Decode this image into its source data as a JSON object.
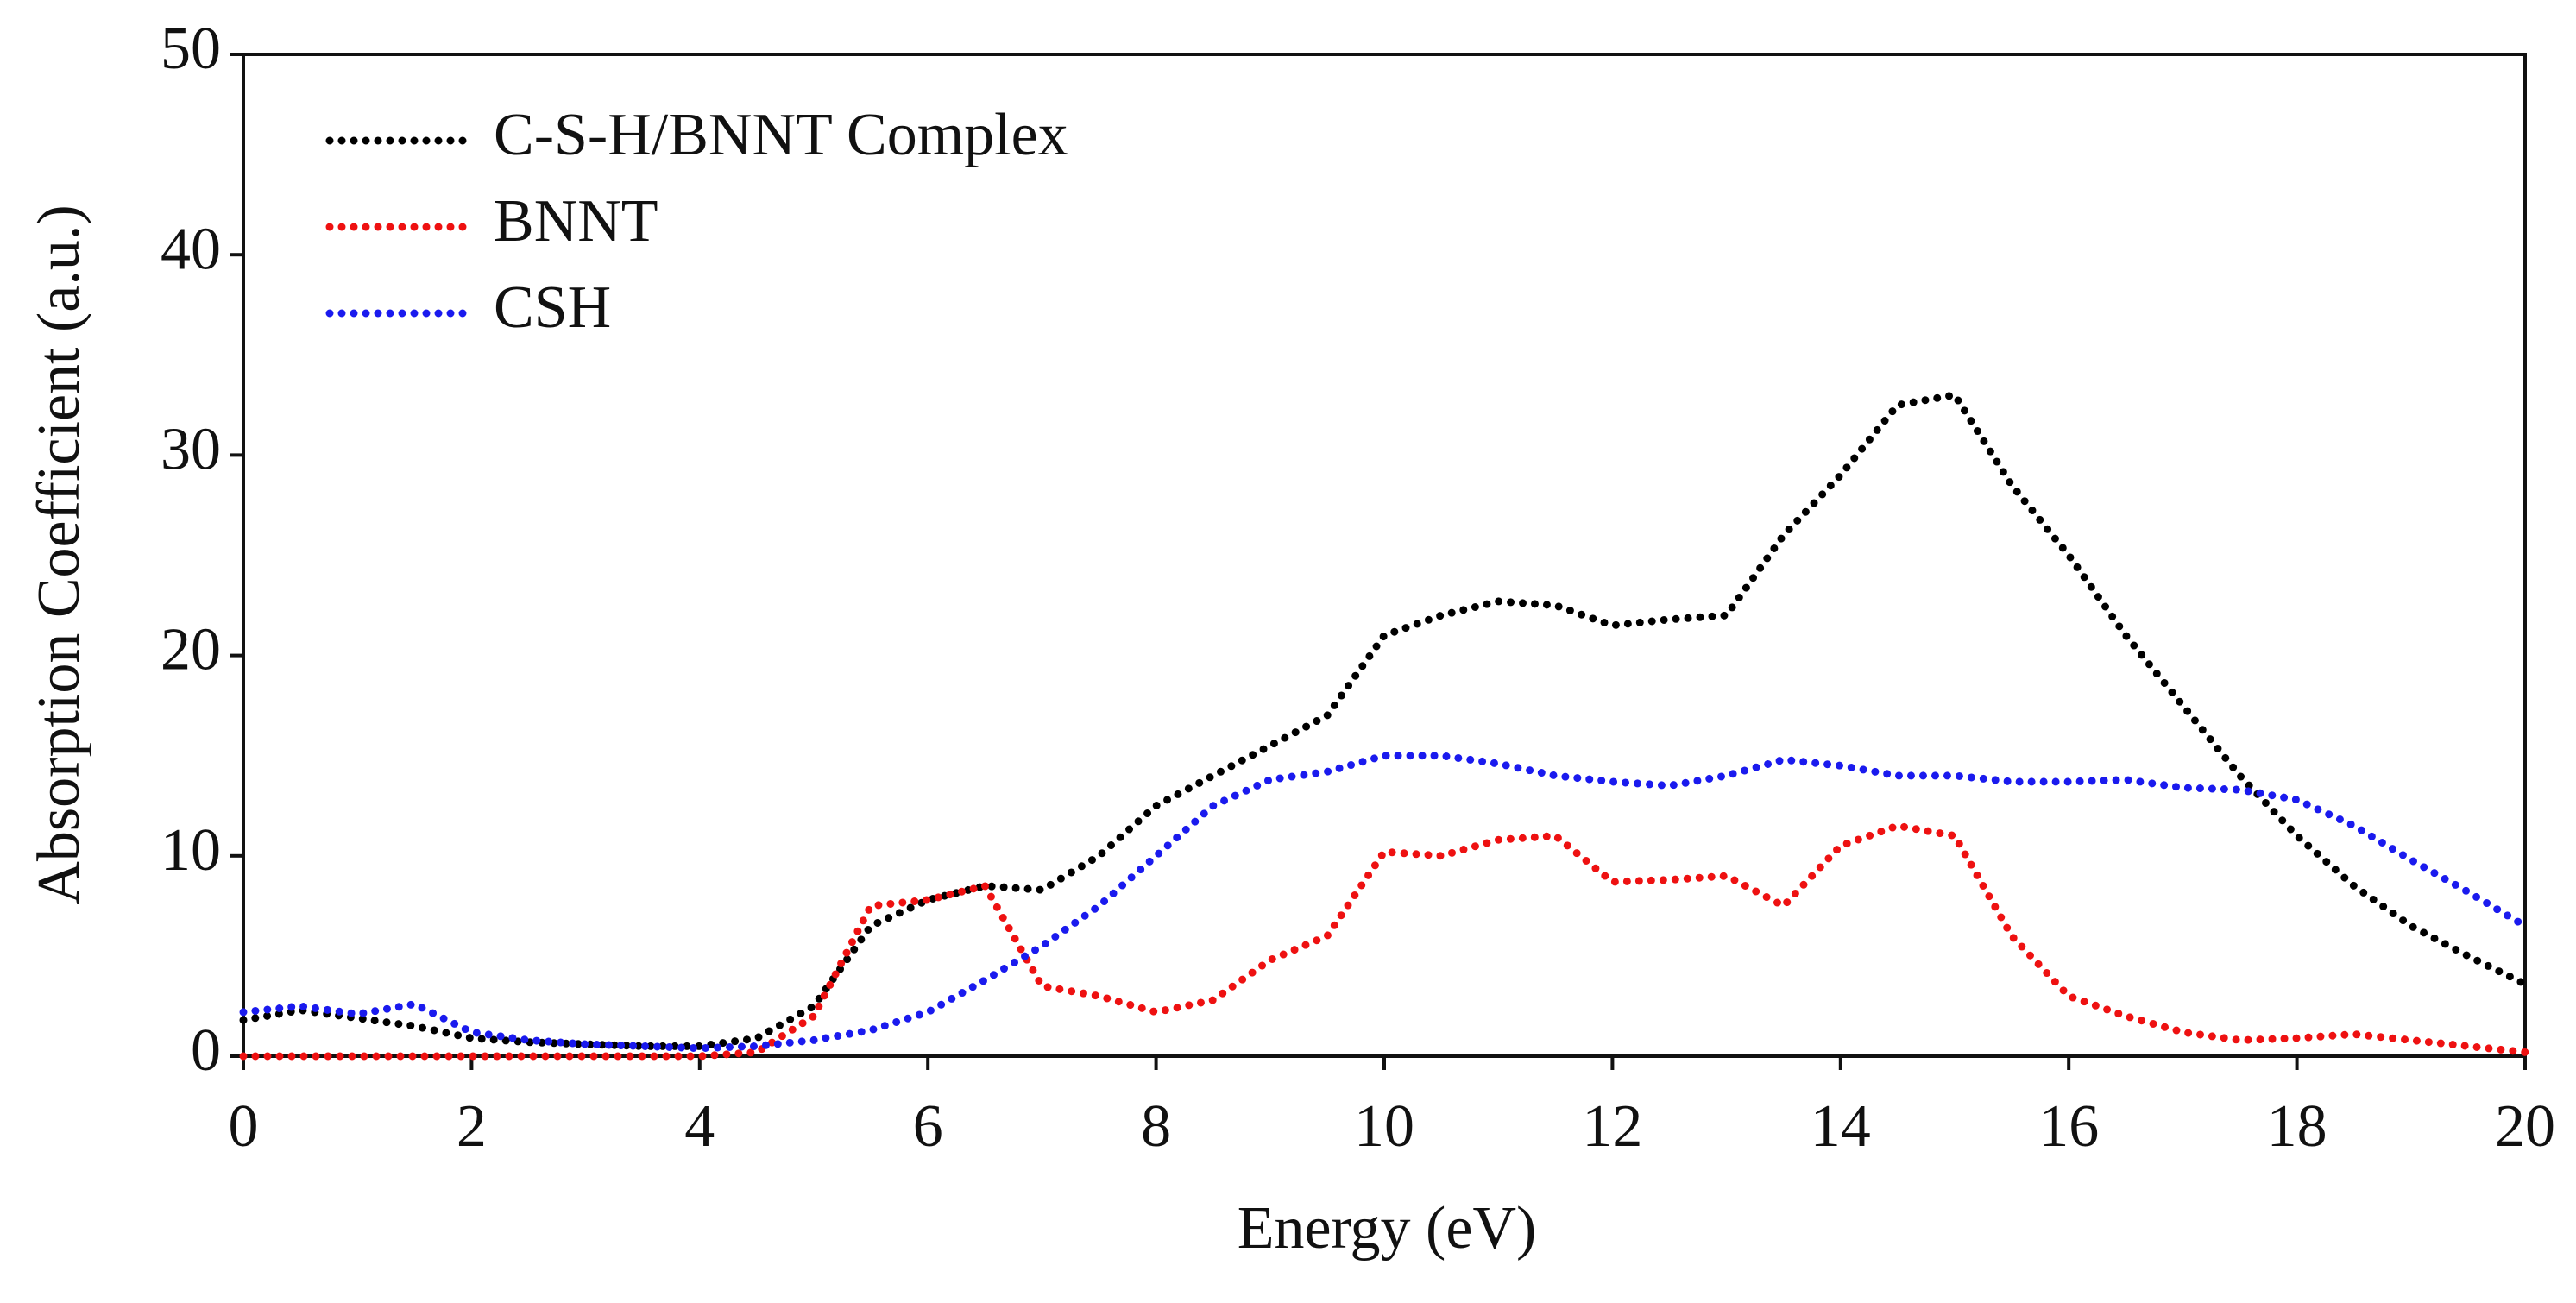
{
  "chart_data": {
    "type": "line",
    "xlabel": "Energy (eV)",
    "ylabel": "Absorption Coefficient (a.u.)",
    "x": [
      0,
      0.5,
      1,
      1.5,
      2,
      2.5,
      3,
      3.5,
      4,
      4.5,
      5,
      5.5,
      6,
      6.5,
      7,
      7.5,
      8,
      8.5,
      9,
      9.5,
      10,
      10.5,
      11,
      11.5,
      12,
      12.5,
      13,
      13.5,
      14,
      14.5,
      15,
      15.5,
      16,
      16.5,
      17,
      17.5,
      18,
      18.5,
      19,
      19.5,
      20
    ],
    "series": [
      {
        "name": "C-S-H/BNNT Complex",
        "color": "#000000",
        "values": [
          1.8,
          2.3,
          1.9,
          1.5,
          0.9,
          0.7,
          0.6,
          0.5,
          0.5,
          0.9,
          2.5,
          6.5,
          7.8,
          8.5,
          8.3,
          10,
          12.5,
          14,
          15.5,
          17,
          21,
          22,
          22.7,
          22.5,
          21.5,
          21.8,
          22,
          26,
          29,
          32.5,
          33,
          28.5,
          25,
          21,
          17.5,
          14,
          11,
          8.5,
          6.5,
          5,
          3.6
        ]
      },
      {
        "name": "BNNT",
        "color": "#ee1111",
        "values": [
          0,
          0,
          0,
          0,
          0,
          0,
          0,
          0,
          0,
          0.2,
          2,
          7.5,
          7.8,
          8.5,
          3.5,
          3,
          2.2,
          2.8,
          4.8,
          6,
          10.2,
          10,
          10.8,
          11,
          8.7,
          8.8,
          9,
          7.5,
          10.5,
          11.5,
          11,
          6,
          3,
          2,
          1.2,
          0.8,
          0.9,
          1.1,
          0.8,
          0.5,
          0.2
        ]
      },
      {
        "name": "CSH",
        "color": "#1a1aee",
        "values": [
          2.2,
          2.5,
          2.1,
          2.6,
          1.2,
          0.8,
          0.6,
          0.5,
          0.4,
          0.5,
          0.8,
          1.3,
          2.2,
          3.8,
          5.5,
          7.5,
          10,
          12.5,
          13.8,
          14.2,
          15,
          15,
          14.6,
          14,
          13.7,
          13.5,
          14,
          14.8,
          14.5,
          14,
          14,
          13.7,
          13.7,
          13.8,
          13.4,
          13.3,
          12.8,
          11.5,
          9.8,
          8.2,
          6.5
        ]
      }
    ],
    "xlim": [
      0,
      20
    ],
    "xticks": [
      0,
      2,
      4,
      6,
      8,
      10,
      12,
      14,
      16,
      18,
      20
    ],
    "ylim": [
      0,
      50
    ],
    "yticks": [
      0,
      10,
      20,
      30,
      40,
      50
    ],
    "legend": "upper left"
  }
}
